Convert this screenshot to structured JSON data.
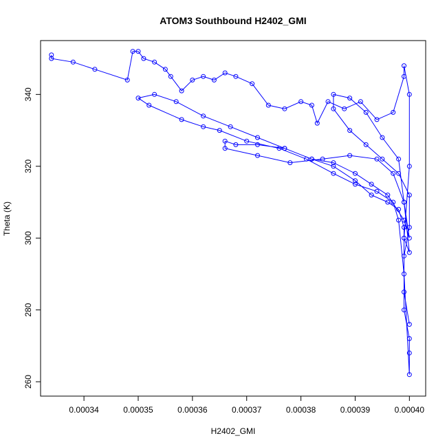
{
  "chart_data": {
    "type": "scatter",
    "title": "ATOM3 Southbound H2402_GMI",
    "xlabel": "H2402_GMI",
    "ylabel": "Theta (K)",
    "xlim": [
      0.000332,
      0.000403
    ],
    "ylim": [
      256,
      355
    ],
    "x_ticks": [
      0.00034,
      0.00035,
      0.00036,
      0.00037,
      0.00038,
      0.00039,
      0.0004
    ],
    "x_tick_labels": [
      "0.00034",
      "0.00035",
      "0.00036",
      "0.00037",
      "0.00038",
      "0.00039",
      "0.00040"
    ],
    "y_ticks": [
      260,
      280,
      300,
      320,
      340
    ],
    "y_tick_labels": [
      "260",
      "280",
      "300",
      "320",
      "340"
    ],
    "grid": false,
    "legend": "none",
    "series_color": "#0000ff",
    "marker": "open-circle",
    "connected": true,
    "x": [
      0.000334,
      0.000334,
      0.000338,
      0.000342,
      0.000348,
      0.000349,
      0.00035,
      0.000351,
      0.000353,
      0.000355,
      0.000356,
      0.000358,
      0.00036,
      0.000362,
      0.000364,
      0.000366,
      0.000368,
      0.000371,
      0.000374,
      0.000377,
      0.00038,
      0.000382,
      0.000383,
      0.000385,
      0.000388,
      0.000391,
      0.000394,
      0.000397,
      0.000399,
      0.000399,
      0.0004,
      0.0004,
      0.000399,
      0.000399,
      0.0004,
      0.0004,
      0.0004,
      0.000399,
      0.000398,
      0.000397,
      0.000394,
      0.00039,
      0.000386,
      0.000381,
      0.000376,
      0.00037,
      0.000365,
      0.000362,
      0.000358,
      0.000352,
      0.00035,
      0.000353,
      0.000357,
      0.000362,
      0.000367,
      0.000372,
      0.000377,
      0.000382,
      0.000386,
      0.00039,
      0.000393,
      0.000396,
      0.000399,
      0.0004,
      0.000399,
      0.000397,
      0.000394,
      0.000389,
      0.000384,
      0.000378,
      0.000372,
      0.000366,
      0.000366,
      0.000368,
      0.000372,
      0.000377,
      0.000382,
      0.000386,
      0.00039,
      0.000393,
      0.000396,
      0.000398,
      0.000399,
      0.000399,
      0.0004,
      0.000399,
      0.000398,
      0.000395,
      0.000392,
      0.000389,
      0.000386,
      0.000386,
      0.000389,
      0.000392,
      0.000395,
      0.000398,
      0.0004,
      0.0004,
      0.000399,
      0.000399,
      0.0004
    ],
    "y": [
      351,
      350,
      349,
      347,
      344,
      352,
      352,
      350,
      349,
      347,
      345,
      341,
      344,
      345,
      344,
      346,
      345,
      343,
      337,
      336,
      338,
      337,
      332,
      338,
      336,
      338,
      333,
      335,
      345,
      348,
      340,
      320,
      300,
      280,
      272,
      268,
      262,
      290,
      305,
      310,
      313,
      315,
      318,
      322,
      325,
      327,
      330,
      331,
      333,
      337,
      339,
      340,
      338,
      334,
      331,
      328,
      325,
      322,
      321,
      318,
      315,
      312,
      305,
      300,
      310,
      318,
      322,
      323,
      322,
      321,
      323,
      325,
      327,
      326,
      326,
      325,
      322,
      320,
      316,
      312,
      310,
      308,
      303,
      300,
      296,
      310,
      322,
      328,
      335,
      339,
      340,
      336,
      330,
      326,
      322,
      318,
      312,
      303,
      295,
      285,
      276
    ]
  }
}
